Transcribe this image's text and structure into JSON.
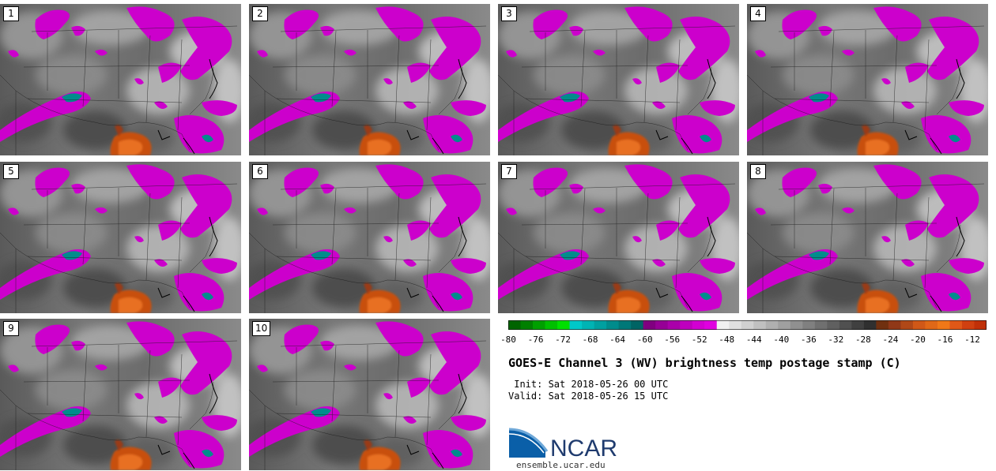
{
  "stamps": [
    "1",
    "2",
    "3",
    "4",
    "5",
    "6",
    "7",
    "8",
    "9",
    "10"
  ],
  "colorbar": {
    "ticks": [
      "-80",
      "-76",
      "-72",
      "-68",
      "-64",
      "-60",
      "-56",
      "-52",
      "-48",
      "-44",
      "-40",
      "-36",
      "-32",
      "-28",
      "-24",
      "-20",
      "-16",
      "-12"
    ],
    "colors": [
      "#006400",
      "#008000",
      "#00a000",
      "#00c000",
      "#00e000",
      "#00c8c8",
      "#00b4b4",
      "#00a0a0",
      "#008c8c",
      "#007878",
      "#006464",
      "#800080",
      "#960096",
      "#aa00aa",
      "#be00be",
      "#d200d2",
      "#e000e0",
      "#f0f0f0",
      "#e0e0e0",
      "#d0d0d0",
      "#c0c0c0",
      "#b0b0b0",
      "#a0a0a0",
      "#909090",
      "#808080",
      "#707070",
      "#606060",
      "#505050",
      "#404040",
      "#303030",
      "#703010",
      "#903818",
      "#b04818",
      "#d05818",
      "#e06818",
      "#f07818",
      "#e05818",
      "#d04010",
      "#c03008"
    ]
  },
  "title": "GOES-E Channel 3 (WV) brightness temp postage stamp (C)",
  "init_line": " Init: Sat 2018-05-26 00 UTC",
  "valid_line": "Valid: Sat 2018-05-26 15 UTC",
  "logo": {
    "text": "NCAR",
    "primary_color": "#0a5fa8"
  },
  "site": "ensemble.ucar.edu"
}
